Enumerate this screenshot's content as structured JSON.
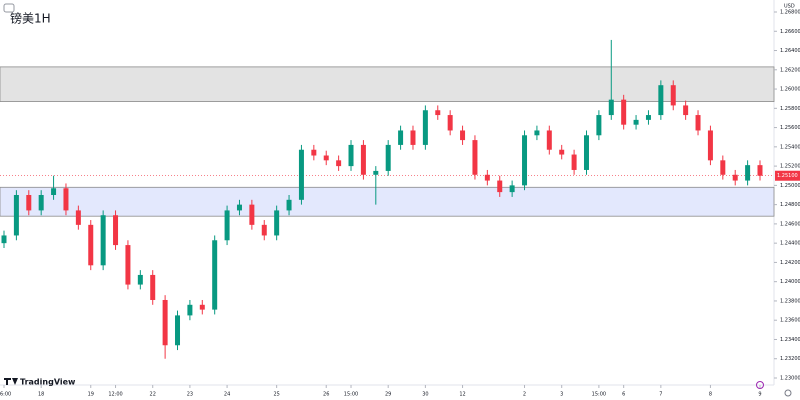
{
  "chart_data": {
    "type": "candlestick",
    "title": "镑美1H",
    "currency": "USD",
    "brand": "TradingView",
    "up_color": "#089981",
    "down_color": "#f23645",
    "open": [
      1.244,
      1.2448,
      1.249,
      1.2474,
      1.249,
      1.2497,
      1.2474,
      1.2459,
      1.2417,
      1.2469,
      1.2438,
      1.2397,
      1.2407,
      1.2381,
      1.2334,
      1.2365,
      1.2376,
      1.2371,
      1.2443,
      1.2474,
      1.248,
      1.2459,
      1.2448,
      1.2474,
      1.2485,
      1.2537,
      1.2531,
      1.2526,
      1.252,
      1.2542,
      1.2511,
      1.2515,
      1.2542,
      1.2557,
      1.2542,
      1.2578,
      1.2573,
      1.2557,
      1.2547,
      1.2511,
      1.2505,
      1.2493,
      1.25,
      1.2552,
      1.2557,
      1.2537,
      1.2532,
      1.2516,
      1.2552,
      1.2573,
      1.2589,
      1.2563,
      1.2568,
      1.2573,
      1.2604,
      1.2583,
      1.2573,
      1.2557,
      1.2526,
      1.2511,
      1.2505,
      1.2521
    ],
    "high": [
      1.2453,
      1.2495,
      1.2495,
      1.2495,
      1.251,
      1.2502,
      1.2479,
      1.2464,
      1.2474,
      1.2474,
      1.2443,
      1.2412,
      1.2412,
      1.2386,
      1.237,
      1.2381,
      1.2381,
      1.2448,
      1.2479,
      1.2485,
      1.2485,
      1.2464,
      1.2479,
      1.249,
      1.2542,
      1.2542,
      1.2536,
      1.2531,
      1.2547,
      1.2547,
      1.252,
      1.2547,
      1.2562,
      1.2562,
      1.2583,
      1.2583,
      1.2578,
      1.2562,
      1.2552,
      1.2516,
      1.251,
      1.2505,
      1.2557,
      1.2562,
      1.2562,
      1.2542,
      1.2537,
      1.2557,
      1.2578,
      1.2651,
      1.2594,
      1.2573,
      1.2578,
      1.2609,
      1.2609,
      1.2588,
      1.2578,
      1.2562,
      1.2531,
      1.2516,
      1.2526,
      1.2526
    ],
    "low": [
      1.2435,
      1.2443,
      1.2469,
      1.2469,
      1.2485,
      1.2469,
      1.2454,
      1.2412,
      1.2412,
      1.2433,
      1.2392,
      1.2392,
      1.2376,
      1.232,
      1.2329,
      1.236,
      1.2366,
      1.2366,
      1.2438,
      1.2469,
      1.2454,
      1.2443,
      1.2443,
      1.2469,
      1.248,
      1.2526,
      1.2521,
      1.2515,
      1.2515,
      1.2506,
      1.248,
      1.251,
      1.2537,
      1.2537,
      1.2537,
      1.2568,
      1.2552,
      1.2542,
      1.2506,
      1.25,
      1.2488,
      1.2488,
      1.2495,
      1.2547,
      1.2532,
      1.2527,
      1.2511,
      1.2511,
      1.2547,
      1.2568,
      1.2558,
      1.2558,
      1.2563,
      1.2568,
      1.2578,
      1.2568,
      1.2552,
      1.2521,
      1.2506,
      1.25,
      1.25,
      1.2505
    ],
    "close": [
      1.2448,
      1.249,
      1.2474,
      1.249,
      1.2497,
      1.2474,
      1.2459,
      1.2417,
      1.2469,
      1.2438,
      1.2397,
      1.2407,
      1.2381,
      1.2334,
      1.2365,
      1.2376,
      1.2371,
      1.2443,
      1.2474,
      1.248,
      1.2459,
      1.2448,
      1.2474,
      1.2485,
      1.2537,
      1.2531,
      1.2526,
      1.252,
      1.2542,
      1.2511,
      1.2515,
      1.2542,
      1.2557,
      1.2542,
      1.2578,
      1.2573,
      1.2557,
      1.2547,
      1.2511,
      1.2505,
      1.2493,
      1.25,
      1.2552,
      1.2557,
      1.2537,
      1.2532,
      1.2516,
      1.2552,
      1.2573,
      1.2589,
      1.2563,
      1.2568,
      1.2573,
      1.2604,
      1.2583,
      1.2573,
      1.2557,
      1.2526,
      1.2511,
      1.2505,
      1.2521,
      1.251
    ],
    "zones": [
      {
        "low": 1.2587,
        "high": 1.2623,
        "color": "#e3e3e3"
      },
      {
        "low": 1.2468,
        "high": 1.2498,
        "color": "#e3e8fd"
      }
    ],
    "current_price": {
      "value": 1.251,
      "label": "1.25100"
    },
    "xticks": [
      {
        "value": 0,
        "label": "06:00"
      },
      {
        "value": 3,
        "label": "18"
      },
      {
        "value": 7,
        "label": "19"
      },
      {
        "value": 9,
        "label": "12:00"
      },
      {
        "value": 12,
        "label": "22"
      },
      {
        "value": 15,
        "label": "23"
      },
      {
        "value": 18,
        "label": "24"
      },
      {
        "value": 22,
        "label": "25"
      },
      {
        "value": 26,
        "label": "26"
      },
      {
        "value": 28,
        "label": "15:00"
      },
      {
        "value": 31,
        "label": "29"
      },
      {
        "value": 34,
        "label": "30"
      },
      {
        "value": 37,
        "label": "12"
      },
      {
        "value": 42,
        "label": "2"
      },
      {
        "value": 45,
        "label": "3"
      },
      {
        "value": 48,
        "label": "15:00"
      },
      {
        "value": 50,
        "label": "6"
      },
      {
        "value": 53,
        "label": "7"
      },
      {
        "value": 57,
        "label": "8"
      },
      {
        "value": 61,
        "label": "9"
      }
    ],
    "ylim": [
      1.23,
      1.268
    ],
    "yticks": [
      {
        "value": 1.23,
        "label": "1.23000"
      },
      {
        "value": 1.232,
        "label": "1.23200"
      },
      {
        "value": 1.234,
        "label": "1.23400"
      },
      {
        "value": 1.236,
        "label": "1.23600"
      },
      {
        "value": 1.238,
        "label": "1.23800"
      },
      {
        "value": 1.24,
        "label": "1.24000"
      },
      {
        "value": 1.242,
        "label": "1.24200"
      },
      {
        "value": 1.244,
        "label": "1.24400"
      },
      {
        "value": 1.246,
        "label": "1.24600"
      },
      {
        "value": 1.248,
        "label": "1.24800"
      },
      {
        "value": 1.25,
        "label": "1.25000"
      },
      {
        "value": 1.252,
        "label": "1.25200"
      },
      {
        "value": 1.254,
        "label": "1.25400"
      },
      {
        "value": 1.256,
        "label": "1.25600"
      },
      {
        "value": 1.258,
        "label": "1.25800"
      },
      {
        "value": 1.26,
        "label": "1.26000"
      },
      {
        "value": 1.262,
        "label": "1.26200"
      },
      {
        "value": 1.264,
        "label": "1.26400"
      },
      {
        "value": 1.266,
        "label": "1.26600"
      },
      {
        "value": 1.268,
        "label": "1.26800"
      }
    ]
  }
}
